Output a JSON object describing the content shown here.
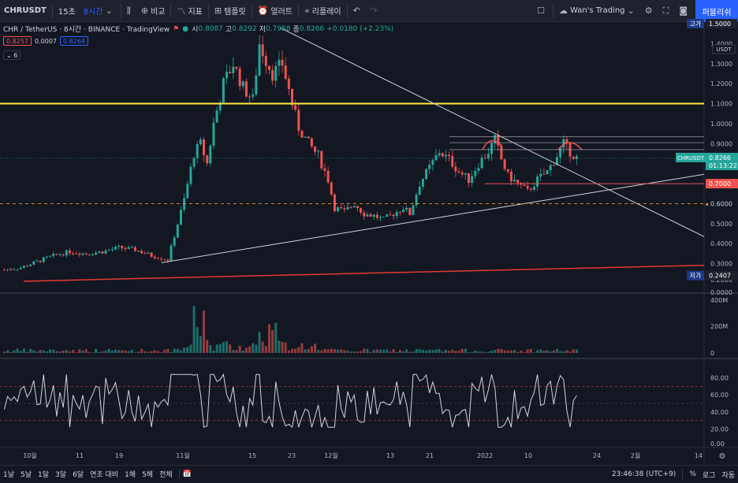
{
  "toolbar": {
    "symbol": "CHRUSDT",
    "intervals": [
      "15초",
      "8시간"
    ],
    "compare": "비교",
    "indicators": "지표",
    "templates": "템플릿",
    "alerts": "얼러트",
    "replay": "리플레이",
    "layout_name": "Wan's Trading",
    "publish": "퍼블리쉬"
  },
  "legend": {
    "title": "CHR / TetherUS · 8시간 · BINANCE · TradingView",
    "open_label": "시",
    "open": "0.8087",
    "high_label": "고",
    "high": "0.8292",
    "low_label": "저",
    "low": "0.7958",
    "close_label": "종",
    "close": "0.8266",
    "change": "+0.0180 (+2.23%)",
    "bid": "0.8257",
    "spread": "0.0007",
    "ask": "0.8264",
    "collapse_count": "6"
  },
  "price_axis": {
    "ticks": [
      "1.4000",
      "1.3000",
      "1.2000",
      "1.1000",
      "1.0000",
      "0.9000",
      "0.8000",
      "0.7000",
      "0.6000",
      "0.5000",
      "0.4000",
      "0.3000"
    ],
    "high_label": "고가",
    "high_value": "1.5000",
    "low_label": "저가",
    "low_value": "0.2407",
    "bottom": "0.2000",
    "currency": "USDT",
    "current_symbol": "CHRUSDT",
    "current_price": "0.8266",
    "countdown": "01:13:22",
    "alert_price": "0.7000",
    "dashed_level": "0.6000"
  },
  "volume_axis": {
    "top_zero": "0.0000",
    "ticks": [
      "400M",
      "200M",
      "0"
    ]
  },
  "rsi_axis": {
    "ticks": [
      "80.00",
      "60.00",
      "40.00",
      "20.00"
    ],
    "bottom": "0.00"
  },
  "time_axis": {
    "labels": [
      "10월",
      "11",
      "19",
      "11월",
      "15",
      "23",
      "12월",
      "13",
      "21",
      "2022",
      "10",
      "24",
      "2월",
      "14"
    ]
  },
  "bottom": {
    "ranges": [
      "1날",
      "5날",
      "1달",
      "3달",
      "6달",
      "연초 대비",
      "1해",
      "5해",
      "전체"
    ],
    "clock": "23:46:38 (UTC+9)",
    "percent": "%",
    "log": "로그",
    "auto": "자동"
  },
  "colors": {
    "up": "#26a69a",
    "down": "#ef5350",
    "resistance": "#ffeb3b",
    "support_long": "#e53935",
    "trendline": "#d1d4dc",
    "accent": "#2962ff"
  },
  "chart_data": {
    "type": "candlestick",
    "ylim": [
      0.2,
      1.5
    ],
    "close_path": [
      [
        0,
        0.27
      ],
      [
        5,
        0.28
      ],
      [
        10,
        0.31
      ],
      [
        15,
        0.34
      ],
      [
        20,
        0.36
      ],
      [
        25,
        0.35
      ],
      [
        30,
        0.36
      ],
      [
        35,
        0.38
      ],
      [
        40,
        0.37
      ],
      [
        45,
        0.34
      ],
      [
        50,
        0.32
      ],
      [
        52,
        0.44
      ],
      [
        55,
        0.62
      ],
      [
        58,
        0.85
      ],
      [
        60,
        0.9
      ],
      [
        62,
        0.8
      ],
      [
        64,
        1.0
      ],
      [
        67,
        1.2
      ],
      [
        70,
        1.3
      ],
      [
        73,
        1.18
      ],
      [
        76,
        1.12
      ],
      [
        78,
        1.4
      ],
      [
        80,
        1.32
      ],
      [
        82,
        1.25
      ],
      [
        85,
        1.3
      ],
      [
        88,
        1.1
      ],
      [
        90,
        0.98
      ],
      [
        93,
        0.9
      ],
      [
        96,
        0.84
      ],
      [
        99,
        0.72
      ],
      [
        101,
        0.58
      ],
      [
        104,
        0.56
      ],
      [
        107,
        0.6
      ],
      [
        110,
        0.55
      ],
      [
        113,
        0.54
      ],
      [
        116,
        0.52
      ],
      [
        119,
        0.55
      ],
      [
        122,
        0.58
      ],
      [
        124,
        0.55
      ],
      [
        127,
        0.7
      ],
      [
        130,
        0.78
      ],
      [
        133,
        0.86
      ],
      [
        136,
        0.82
      ],
      [
        139,
        0.76
      ],
      [
        142,
        0.72
      ],
      [
        145,
        0.8
      ],
      [
        148,
        0.86
      ],
      [
        150,
        0.92
      ],
      [
        152,
        0.82
      ],
      [
        154,
        0.74
      ],
      [
        157,
        0.7
      ],
      [
        160,
        0.66
      ],
      [
        163,
        0.72
      ],
      [
        166,
        0.76
      ],
      [
        169,
        0.84
      ],
      [
        171,
        0.9
      ],
      [
        173,
        0.86
      ],
      [
        175,
        0.8266
      ]
    ],
    "resistance_level": 1.1,
    "alert_level": 0.7,
    "dashed_level": 0.6,
    "rsi_bands": [
      70,
      50,
      30
    ]
  }
}
